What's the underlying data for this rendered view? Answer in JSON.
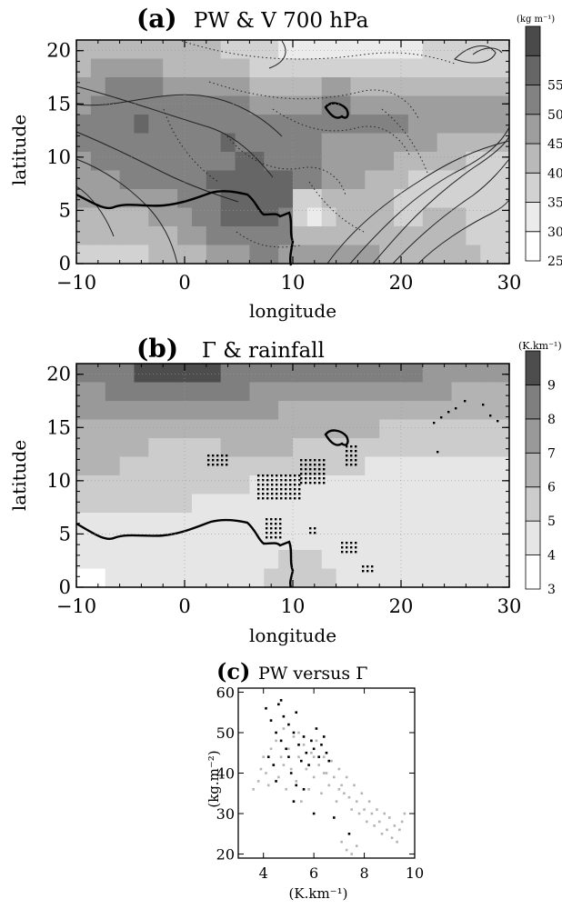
{
  "chart_data": [
    {
      "type": "heatmap",
      "panel_label": "(a)",
      "title": "PW  &  V 700 hPa",
      "xlabel": "longitude",
      "ylabel": "latitude",
      "xlim": [
        -10,
        30
      ],
      "ylim": [
        0,
        21
      ],
      "xticks": [
        -10,
        0,
        10,
        20,
        30
      ],
      "yticks": [
        0,
        5,
        10,
        15,
        20
      ],
      "colorbar": {
        "unit": "(kg m⁻¹)",
        "levels": [
          25,
          30,
          35,
          40,
          45,
          50,
          55
        ],
        "shades": [
          "#ffffff",
          "#ebebeb",
          "#d2d2d2",
          "#b9b9b9",
          "#9e9e9e",
          "#828282",
          "#666666",
          "#4a4a4a"
        ]
      },
      "field_rows_top_to_bottom": [
        [
          3,
          3,
          3,
          3,
          3,
          3,
          3,
          3,
          3,
          3,
          2,
          2,
          2,
          2,
          1,
          1,
          1,
          1,
          1,
          1,
          1,
          1,
          1,
          1,
          2,
          2,
          2,
          2,
          2,
          2
        ],
        [
          3,
          4,
          4,
          4,
          4,
          4,
          3,
          3,
          3,
          3,
          3,
          3,
          2,
          2,
          2,
          2,
          2,
          2,
          2,
          2,
          2,
          2,
          2,
          2,
          2,
          2,
          2,
          2,
          2,
          2
        ],
        [
          4,
          4,
          5,
          5,
          5,
          5,
          4,
          4,
          4,
          4,
          4,
          4,
          3,
          3,
          3,
          3,
          3,
          4,
          4,
          3,
          3,
          3,
          3,
          3,
          3,
          3,
          3,
          3,
          3,
          3
        ],
        [
          4,
          5,
          5,
          5,
          5,
          5,
          5,
          5,
          5,
          5,
          5,
          5,
          4,
          4,
          4,
          4,
          4,
          5,
          5,
          4,
          4,
          4,
          4,
          4,
          4,
          4,
          4,
          4,
          4,
          4
        ],
        [
          5,
          5,
          5,
          5,
          6,
          5,
          5,
          5,
          5,
          5,
          5,
          5,
          5,
          5,
          5,
          5,
          5,
          5,
          5,
          5,
          5,
          5,
          5,
          4,
          4,
          4,
          4,
          4,
          4,
          4
        ],
        [
          5,
          5,
          5,
          5,
          5,
          5,
          5,
          5,
          5,
          5,
          6,
          5,
          5,
          5,
          5,
          5,
          5,
          4,
          4,
          4,
          4,
          4,
          4,
          4,
          4,
          3,
          3,
          3,
          3,
          3
        ],
        [
          4,
          5,
          5,
          5,
          5,
          5,
          5,
          5,
          5,
          5,
          5,
          6,
          6,
          5,
          5,
          5,
          5,
          4,
          4,
          4,
          4,
          4,
          3,
          3,
          3,
          3,
          3,
          2,
          2,
          2
        ],
        [
          4,
          4,
          4,
          5,
          5,
          5,
          5,
          5,
          5,
          6,
          6,
          6,
          6,
          6,
          6,
          5,
          5,
          4,
          4,
          4,
          3,
          3,
          3,
          2,
          2,
          2,
          2,
          2,
          2,
          2
        ],
        [
          4,
          4,
          4,
          4,
          4,
          4,
          4,
          5,
          5,
          5,
          6,
          6,
          6,
          6,
          6,
          2,
          2,
          3,
          3,
          3,
          3,
          3,
          2,
          2,
          2,
          2,
          2,
          2,
          2,
          2
        ],
        [
          3,
          3,
          3,
          3,
          3,
          4,
          4,
          4,
          5,
          5,
          6,
          6,
          6,
          6,
          5,
          2,
          1,
          2,
          3,
          3,
          3,
          3,
          2,
          2,
          3,
          3,
          3,
          2,
          2,
          2
        ],
        [
          3,
          3,
          3,
          3,
          3,
          3,
          3,
          4,
          4,
          5,
          5,
          5,
          5,
          5,
          5,
          3,
          3,
          3,
          3,
          3,
          3,
          3,
          3,
          3,
          3,
          3,
          3,
          2,
          2,
          2
        ],
        [
          2,
          2,
          2,
          2,
          2,
          3,
          3,
          3,
          3,
          4,
          4,
          4,
          5,
          5,
          4,
          4,
          4,
          4,
          4,
          4,
          4,
          3,
          3,
          3,
          3,
          3,
          3,
          3,
          2,
          2
        ]
      ]
    },
    {
      "type": "heatmap",
      "panel_label": "(b)",
      "title": "Γ  &  rainfall",
      "xlabel": "longitude",
      "ylabel": "latitude",
      "xlim": [
        -10,
        30
      ],
      "ylim": [
        0,
        21
      ],
      "xticks": [
        -10,
        0,
        10,
        20,
        30
      ],
      "yticks": [
        0,
        5,
        10,
        15,
        20
      ],
      "colorbar": {
        "unit": "(K.km⁻¹)",
        "levels": [
          3,
          4,
          5,
          6,
          7,
          8,
          9
        ],
        "shades": [
          "#ffffff",
          "#e6e6e6",
          "#cccccc",
          "#b3b3b3",
          "#999999",
          "#7f7f7f",
          "#4d4d4d"
        ]
      },
      "field_rows_top_to_bottom": [
        [
          5,
          5,
          5,
          5,
          6,
          6,
          6,
          6,
          6,
          6,
          5,
          5,
          5,
          5,
          5,
          5,
          5,
          5,
          5,
          5,
          5,
          5,
          5,
          5,
          4,
          4,
          4,
          4,
          4,
          4
        ],
        [
          4,
          4,
          5,
          5,
          5,
          5,
          5,
          5,
          5,
          5,
          5,
          5,
          4,
          4,
          4,
          4,
          4,
          4,
          4,
          4,
          4,
          4,
          4,
          4,
          4,
          4,
          3,
          3,
          3,
          3
        ],
        [
          4,
          4,
          4,
          4,
          4,
          4,
          4,
          4,
          4,
          4,
          4,
          4,
          4,
          4,
          3,
          3,
          3,
          3,
          3,
          3,
          3,
          3,
          3,
          3,
          3,
          3,
          3,
          3,
          3,
          3
        ],
        [
          3,
          3,
          3,
          3,
          3,
          3,
          3,
          3,
          3,
          3,
          3,
          3,
          3,
          3,
          3,
          3,
          3,
          3,
          3,
          3,
          3,
          2,
          2,
          2,
          2,
          2,
          2,
          2,
          2,
          2
        ],
        [
          3,
          3,
          3,
          3,
          3,
          2,
          2,
          2,
          2,
          2,
          3,
          3,
          3,
          3,
          3,
          2,
          2,
          2,
          2,
          2,
          2,
          2,
          2,
          2,
          2,
          2,
          2,
          2,
          2,
          2
        ],
        [
          3,
          3,
          3,
          2,
          2,
          2,
          2,
          2,
          2,
          2,
          2,
          2,
          2,
          2,
          2,
          2,
          2,
          2,
          2,
          2,
          1,
          1,
          1,
          1,
          1,
          1,
          1,
          1,
          1,
          1
        ],
        [
          2,
          2,
          2,
          2,
          2,
          2,
          2,
          2,
          2,
          2,
          2,
          2,
          1,
          1,
          1,
          1,
          1,
          1,
          1,
          1,
          1,
          1,
          1,
          1,
          1,
          1,
          1,
          1,
          1,
          1
        ],
        [
          2,
          2,
          2,
          2,
          2,
          2,
          2,
          2,
          1,
          1,
          1,
          1,
          1,
          1,
          1,
          1,
          1,
          1,
          1,
          1,
          1,
          1,
          1,
          1,
          1,
          1,
          1,
          1,
          1,
          1
        ],
        [
          1,
          1,
          1,
          1,
          1,
          1,
          1,
          1,
          1,
          1,
          1,
          1,
          1,
          1,
          1,
          1,
          1,
          1,
          1,
          1,
          1,
          1,
          1,
          1,
          1,
          1,
          1,
          1,
          1,
          1
        ],
        [
          1,
          1,
          1,
          1,
          1,
          1,
          1,
          1,
          1,
          1,
          1,
          1,
          1,
          1,
          1,
          1,
          1,
          1,
          1,
          1,
          1,
          1,
          1,
          1,
          1,
          1,
          1,
          1,
          1,
          1
        ],
        [
          1,
          1,
          1,
          1,
          1,
          1,
          1,
          1,
          1,
          1,
          1,
          1,
          1,
          1,
          2,
          2,
          2,
          1,
          1,
          1,
          1,
          1,
          1,
          1,
          1,
          1,
          1,
          1,
          1,
          1
        ],
        [
          0,
          0,
          1,
          1,
          1,
          1,
          1,
          1,
          1,
          1,
          1,
          1,
          1,
          2,
          2,
          2,
          2,
          2,
          1,
          1,
          1,
          1,
          1,
          1,
          1,
          1,
          1,
          1,
          1,
          1
        ]
      ]
    },
    {
      "type": "scatter",
      "panel_label": "(c)",
      "title": "PW versus Γ",
      "xlabel": "(K.km⁻¹)",
      "ylabel": "(kg.m⁻²)",
      "xlim": [
        3,
        10
      ],
      "ylim": [
        19,
        61
      ],
      "xticks": [
        4,
        6,
        8,
        10
      ],
      "yticks": [
        20,
        30,
        40,
        50,
        60
      ],
      "series": [
        {
          "color": "#b4b4b4",
          "points": [
            [
              3.6,
              36
            ],
            [
              3.8,
              38
            ],
            [
              3.9,
              41
            ],
            [
              4.0,
              44
            ],
            [
              4.1,
              40
            ],
            [
              4.2,
              37
            ],
            [
              4.3,
              46
            ],
            [
              4.4,
              42
            ],
            [
              4.5,
              48
            ],
            [
              4.6,
              39
            ],
            [
              4.7,
              44
            ],
            [
              4.8,
              51
            ],
            [
              4.9,
              36
            ],
            [
              5.0,
              46
            ],
            [
              5.1,
              41
            ],
            [
              5.2,
              49
            ],
            [
              5.3,
              38
            ],
            [
              5.4,
              44
            ],
            [
              5.5,
              33
            ],
            [
              5.6,
              47
            ],
            [
              5.7,
              41
            ],
            [
              5.8,
              36
            ],
            [
              5.9,
              45
            ],
            [
              6.0,
              39
            ],
            [
              6.1,
              48
            ],
            [
              6.2,
              42
            ],
            [
              6.3,
              35
            ],
            [
              6.4,
              44
            ],
            [
              6.5,
              40
            ],
            [
              6.6,
              37
            ],
            [
              6.7,
              43
            ],
            [
              6.8,
              39
            ],
            [
              6.9,
              33
            ],
            [
              7.0,
              41
            ],
            [
              7.1,
              37
            ],
            [
              7.2,
              35
            ],
            [
              7.3,
              39
            ],
            [
              7.4,
              34
            ],
            [
              7.5,
              31
            ],
            [
              7.6,
              37
            ],
            [
              7.7,
              33
            ],
            [
              7.8,
              30
            ],
            [
              7.9,
              35
            ],
            [
              8.0,
              31
            ],
            [
              8.1,
              28
            ],
            [
              8.2,
              33
            ],
            [
              8.3,
              30
            ],
            [
              8.4,
              27
            ],
            [
              8.5,
              31
            ],
            [
              8.6,
              28
            ],
            [
              8.7,
              25
            ],
            [
              8.8,
              30
            ],
            [
              8.9,
              26
            ],
            [
              9.0,
              29
            ],
            [
              9.1,
              24
            ],
            [
              9.2,
              27
            ],
            [
              9.3,
              23
            ],
            [
              9.4,
              26
            ],
            [
              9.5,
              28
            ],
            [
              9.6,
              30
            ],
            [
              7.1,
              23
            ],
            [
              7.3,
              21
            ],
            [
              7.5,
              20
            ],
            [
              7.7,
              22
            ],
            [
              6.0,
              44
            ],
            [
              5.4,
              50
            ],
            [
              4.8,
              42
            ],
            [
              6.4,
              40
            ],
            [
              7.0,
              36
            ]
          ]
        },
        {
          "color": "#000000",
          "points": [
            [
              4.1,
              56
            ],
            [
              4.3,
              53
            ],
            [
              4.5,
              50
            ],
            [
              4.6,
              57
            ],
            [
              4.7,
              48
            ],
            [
              4.8,
              54
            ],
            [
              4.9,
              46
            ],
            [
              5.0,
              52
            ],
            [
              5.0,
              44
            ],
            [
              5.1,
              40
            ],
            [
              5.2,
              50
            ],
            [
              5.3,
              37
            ],
            [
              5.4,
              47
            ],
            [
              5.5,
              43
            ],
            [
              5.6,
              49
            ],
            [
              5.7,
              45
            ],
            [
              5.8,
              42
            ],
            [
              5.9,
              48
            ],
            [
              6.0,
              46
            ],
            [
              6.1,
              51
            ],
            [
              6.2,
              44
            ],
            [
              6.3,
              47
            ],
            [
              6.4,
              49
            ],
            [
              6.5,
              45
            ],
            [
              6.6,
              43
            ],
            [
              4.5,
              38
            ],
            [
              4.4,
              42
            ],
            [
              4.2,
              44
            ],
            [
              5.2,
              33
            ],
            [
              6.0,
              30
            ],
            [
              7.4,
              25
            ],
            [
              6.8,
              29
            ],
            [
              5.6,
              36
            ],
            [
              4.7,
              58
            ],
            [
              5.3,
              55
            ]
          ]
        }
      ]
    }
  ]
}
